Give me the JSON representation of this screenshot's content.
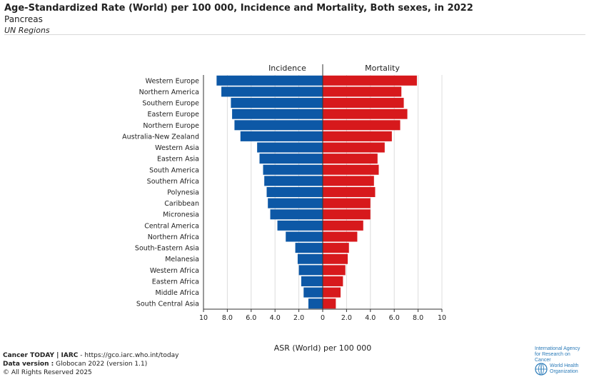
{
  "header": {
    "title": "Age-Standardized Rate (World) per 100 000, Incidence and Mortality, Both sexes, in 2022",
    "subtitle": "Pancreas",
    "region_label": "UN Regions"
  },
  "chart_data": {
    "type": "bar",
    "orientation": "horizontal-back-to-back",
    "left_panel_title": "Incidence",
    "right_panel_title": "Mortality",
    "xlabel": "ASR (World) per 100 000",
    "left_ticks": [
      "10",
      "8.0",
      "6.0",
      "4.0",
      "2.0",
      "0"
    ],
    "right_ticks": [
      "0",
      "2.0",
      "4.0",
      "6.0",
      "8.0",
      "10"
    ],
    "xlim": [
      0,
      10
    ],
    "grid": true,
    "categories": [
      "Western Europe",
      "Northern America",
      "Southern Europe",
      "Eastern Europe",
      "Northern Europe",
      "Australia-New Zealand",
      "Western Asia",
      "Eastern Asia",
      "South America",
      "Southern Africa",
      "Polynesia",
      "Caribbean",
      "Micronesia",
      "Central America",
      "Northern Africa",
      "South-Eastern Asia",
      "Melanesia",
      "Western Africa",
      "Eastern Africa",
      "Middle Africa",
      "South Central Asia"
    ],
    "series": [
      {
        "name": "Incidence",
        "color": "#0d58a6",
        "values": [
          8.9,
          8.5,
          7.7,
          7.6,
          7.4,
          6.9,
          5.5,
          5.3,
          5.0,
          4.9,
          4.7,
          4.6,
          4.4,
          3.8,
          3.1,
          2.3,
          2.1,
          2.0,
          1.8,
          1.6,
          1.2
        ]
      },
      {
        "name": "Mortality",
        "color": "#d7191c",
        "values": [
          7.9,
          6.6,
          6.8,
          7.1,
          6.5,
          5.8,
          5.2,
          4.6,
          4.7,
          4.3,
          4.4,
          4.0,
          4.0,
          3.4,
          2.9,
          2.2,
          2.1,
          1.9,
          1.7,
          1.5,
          1.1
        ]
      }
    ]
  },
  "footer": {
    "source_label": "Cancer TODAY | IARC",
    "source_url": " - https://gco.iarc.who.int/today",
    "data_version_label": "Data version :",
    "data_version_value": " Globocan 2022 (version 1.1)",
    "copyright": "© All Rights Reserved 2025"
  },
  "logos": {
    "iarc_line1": "International Agency",
    "iarc_line2": "for Research on Cancer",
    "who_line1": "World Health",
    "who_line2": "Organization"
  }
}
